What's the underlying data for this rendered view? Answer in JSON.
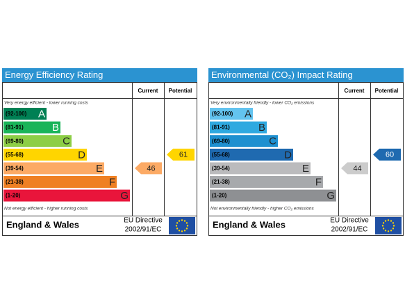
{
  "chart_data": [
    {
      "type": "rating",
      "title": "Energy Efficiency Rating",
      "columns": [
        "Current",
        "Potential"
      ],
      "top_note": "Very energy efficient - lower running costs",
      "bottom_note": "Not energy efficient - higher running costs",
      "bands": [
        {
          "range": "(92-100)",
          "letter": "A",
          "color": "#008054"
        },
        {
          "range": "(81-91)",
          "letter": "B",
          "color": "#19b459"
        },
        {
          "range": "(69-80)",
          "letter": "C",
          "color": "#8dce46"
        },
        {
          "range": "(55-68)",
          "letter": "D",
          "color": "#ffd500"
        },
        {
          "range": "(39-54)",
          "letter": "E",
          "color": "#fcaa65"
        },
        {
          "range": "(21-38)",
          "letter": "F",
          "color": "#ef8023"
        },
        {
          "range": "(1-20)",
          "letter": "G",
          "color": "#e9153b"
        }
      ],
      "current": 46,
      "potential": 61,
      "current_color": "#fcaa65",
      "potential_color": "#ffd500",
      "footer": "England & Wales",
      "directive": [
        "EU Directive",
        "2002/91/EC"
      ]
    },
    {
      "type": "rating",
      "title": "Environmental (CO₂) Impact Rating",
      "columns": [
        "Current",
        "Potential"
      ],
      "top_note": "Very environmentally friendly - lower CO₂ emissions",
      "bottom_note": "Not environmentally friendly - higher CO₂ emissions",
      "bands": [
        {
          "range": "(92-100)",
          "letter": "A",
          "color": "#63c3ef"
        },
        {
          "range": "(81-91)",
          "letter": "B",
          "color": "#2fa9e0"
        },
        {
          "range": "(69-80)",
          "letter": "C",
          "color": "#1e90d0"
        },
        {
          "range": "(55-68)",
          "letter": "D",
          "color": "#1f6ab0"
        },
        {
          "range": "(39-54)",
          "letter": "E",
          "color": "#bbbbbd"
        },
        {
          "range": "(21-38)",
          "letter": "F",
          "color": "#a7a9ac"
        },
        {
          "range": "(1-20)",
          "letter": "G",
          "color": "#8e9093"
        }
      ],
      "current": 44,
      "potential": 60,
      "current_color": "#cccccc",
      "potential_color": "#1f6ab0",
      "footer": "England & Wales",
      "directive": [
        "EU Directive",
        "2002/91/EC"
      ]
    }
  ]
}
